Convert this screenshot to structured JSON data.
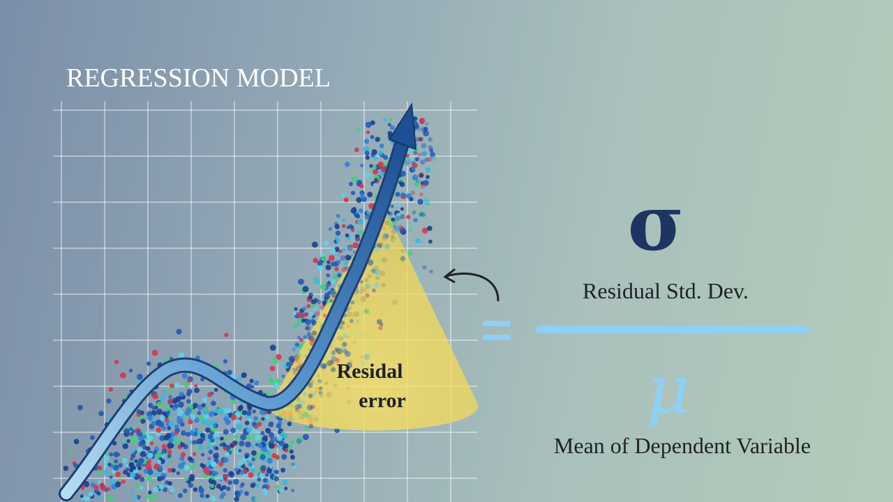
{
  "title": "REGRESSION MODEL",
  "cone_label": [
    "Residal",
    "error"
  ],
  "formula": {
    "numerator_symbol": "σ",
    "numerator_label": "Residual Std. Dev.",
    "denominator_symbol": "μ",
    "denominator_label": "Mean of Dependent Variable"
  }
}
